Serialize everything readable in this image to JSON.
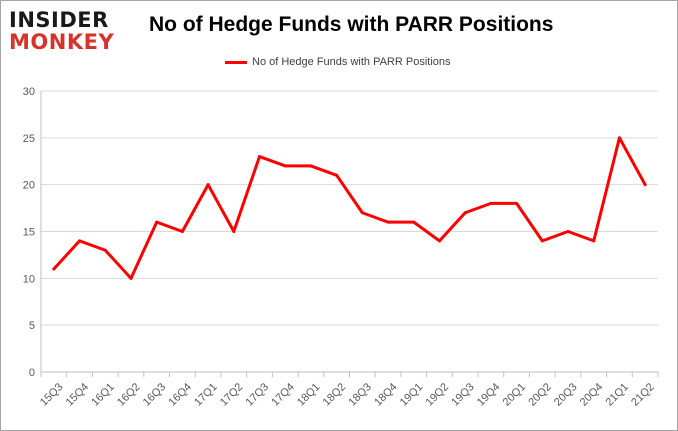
{
  "logo": {
    "line1": "INSIDER",
    "line2": "MONKEY"
  },
  "chart_data": {
    "type": "line",
    "title": "No of Hedge Funds with PARR Positions",
    "xlabel": "",
    "ylabel": "",
    "categories": [
      "15Q3",
      "15Q4",
      "16Q1",
      "16Q2",
      "16Q3",
      "16Q4",
      "17Q1",
      "17Q2",
      "17Q3",
      "17Q4",
      "18Q1",
      "18Q2",
      "18Q3",
      "18Q4",
      "19Q1",
      "19Q2",
      "19Q3",
      "19Q4",
      "20Q1",
      "20Q2",
      "20Q3",
      "20Q4",
      "21Q1",
      "21Q2"
    ],
    "series": [
      {
        "name": "No of Hedge Funds with PARR Positions",
        "values": [
          11,
          14,
          13,
          10,
          16,
          15,
          20,
          15,
          23,
          22,
          22,
          21,
          17,
          16,
          16,
          14,
          17,
          18,
          18,
          14,
          15,
          14,
          25,
          20
        ]
      }
    ],
    "ylim": [
      0,
      30
    ],
    "yticks": [
      0,
      5,
      10,
      15,
      20,
      25,
      30
    ],
    "grid": true,
    "legend_position": "top-center",
    "colors": {
      "line": "#ff0000",
      "grid": "#d9d9d9",
      "axis": "#bfbfbf",
      "tick_text": "#595959"
    }
  }
}
